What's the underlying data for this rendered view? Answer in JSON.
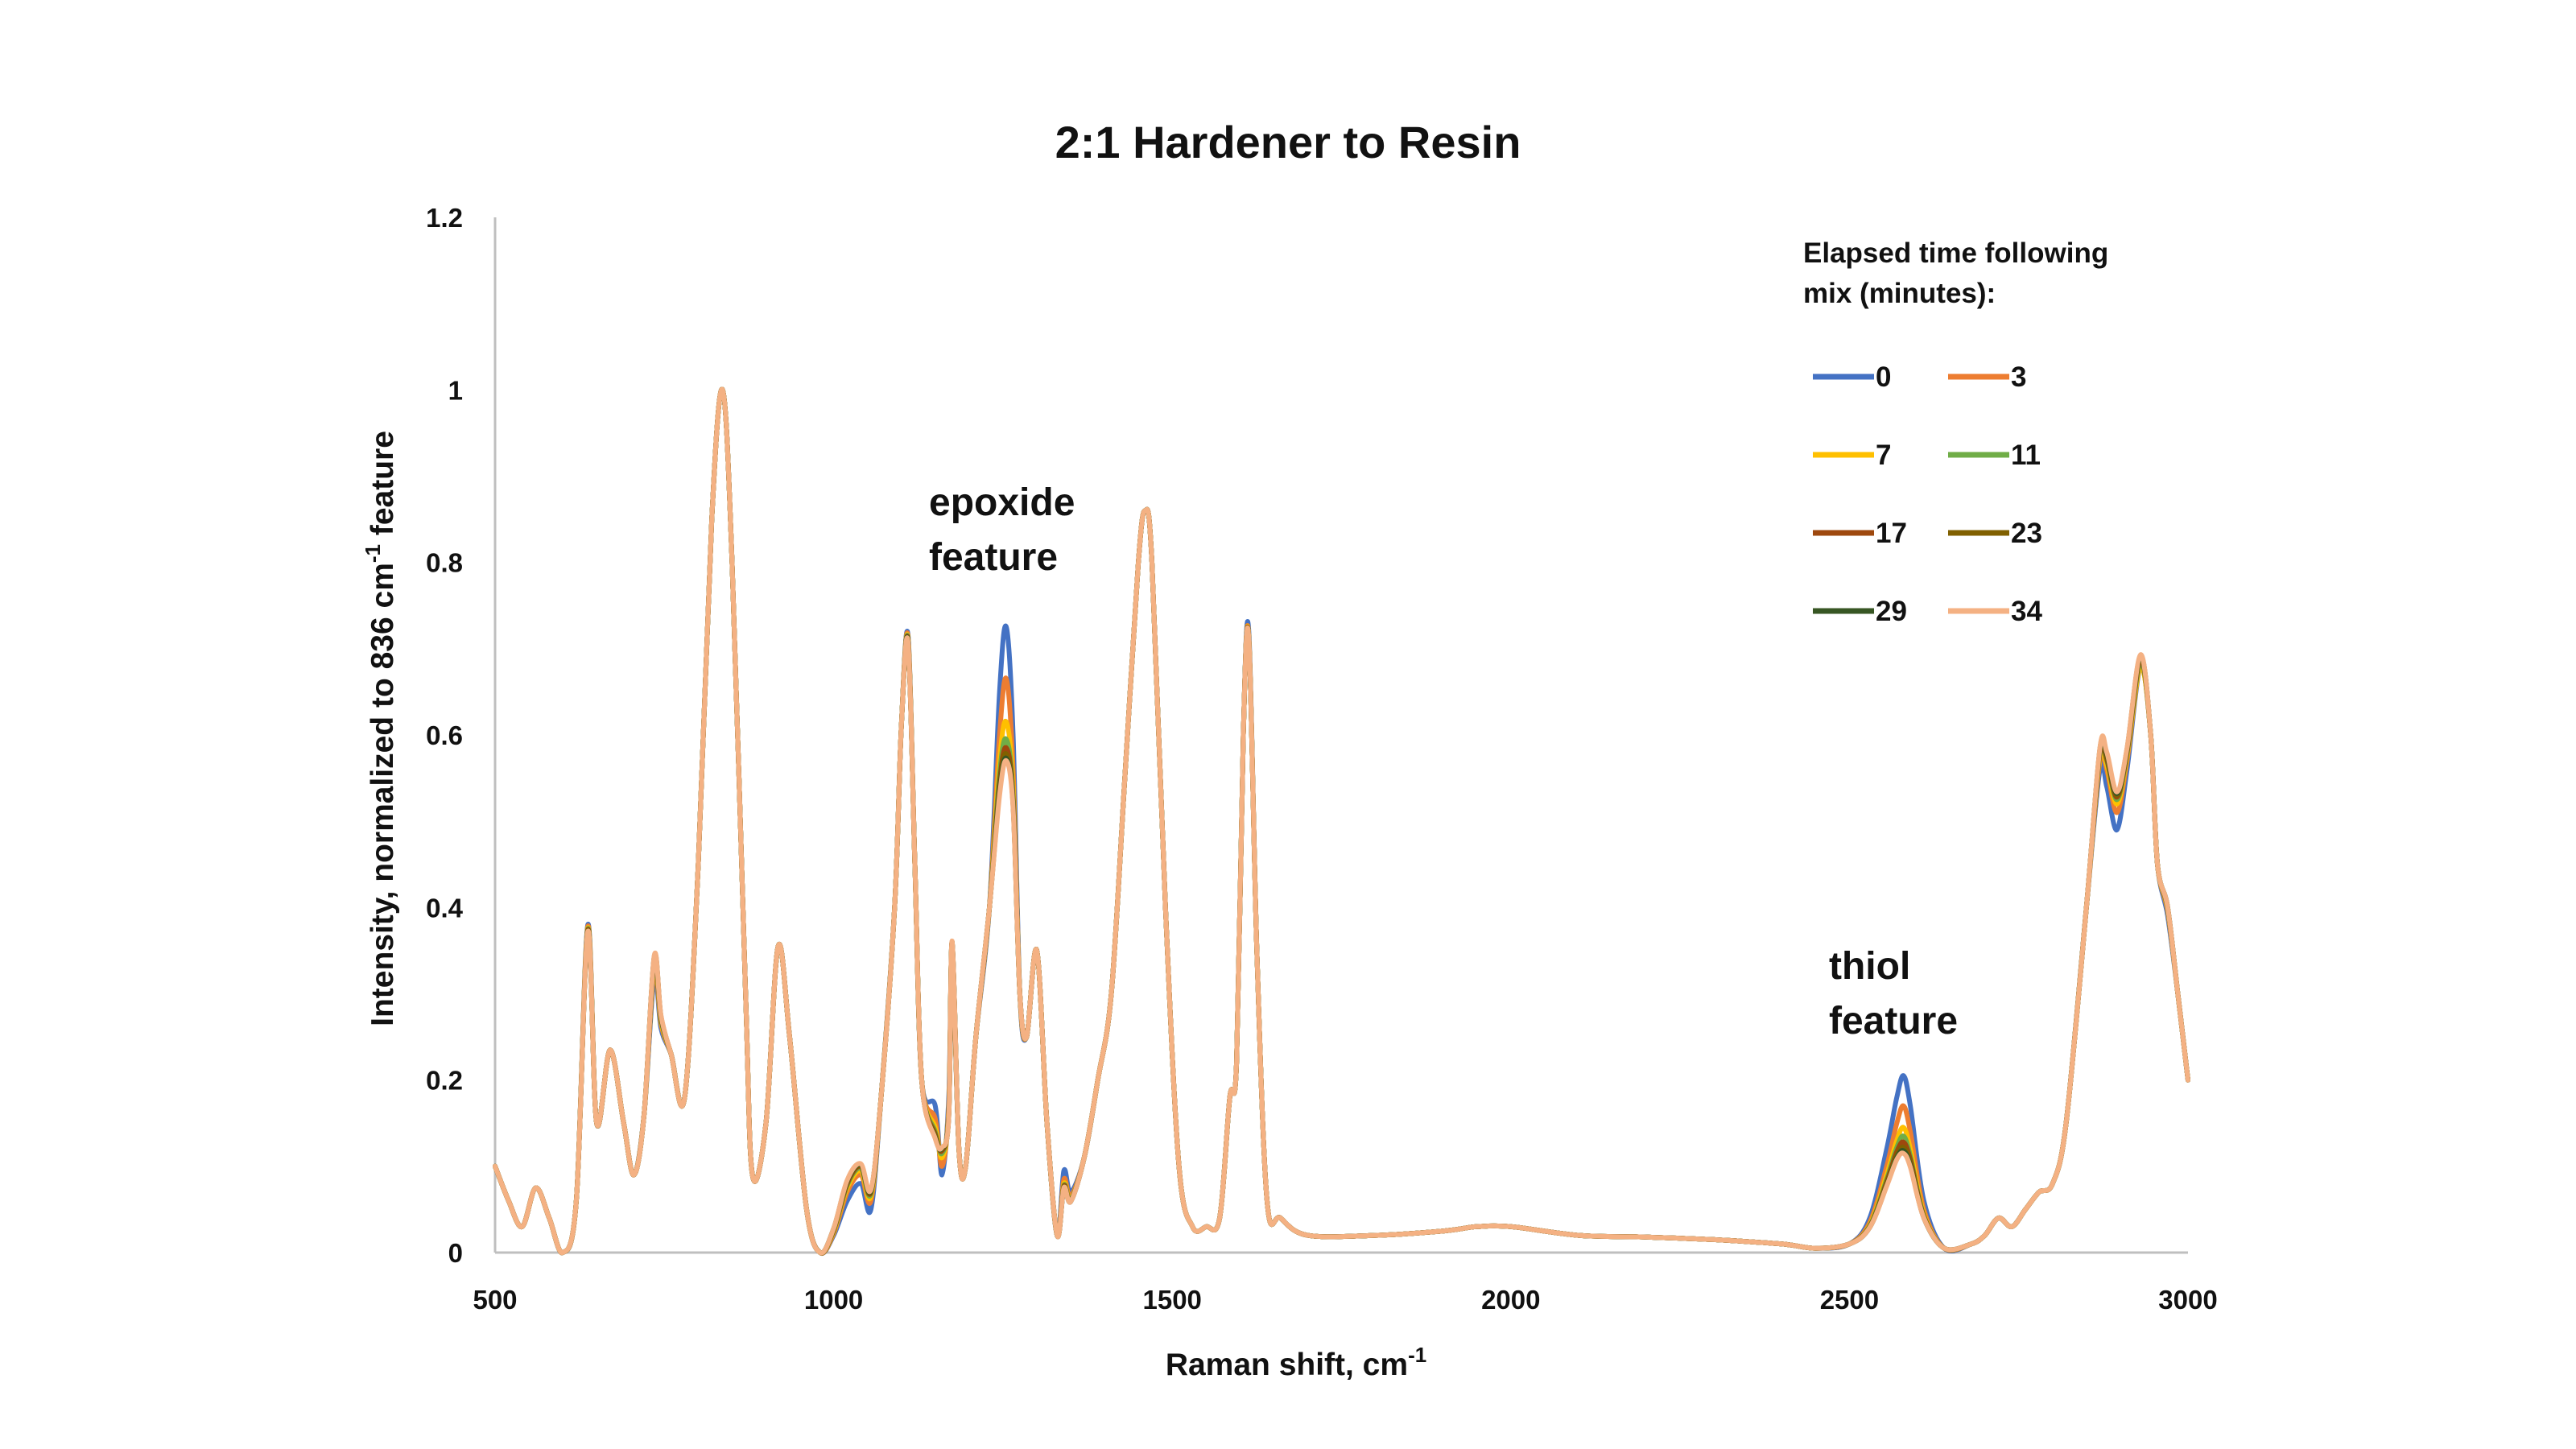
{
  "chart_data": {
    "type": "line",
    "title": "2:1 Hardener to Resin",
    "xlabel_main": "Raman shift, cm",
    "xlabel_sup": "-1",
    "ylabel_main": "Intensity, normalized to 836 cm",
    "ylabel_sup": "-1",
    "ylabel_tail": " feature",
    "xlim": [
      500,
      3000
    ],
    "ylim": [
      0,
      1.2
    ],
    "x_ticks": [
      500,
      1000,
      1500,
      2000,
      2500,
      3000
    ],
    "y_ticks": [
      "0",
      "0.2",
      "0.4",
      "0.6",
      "0.8",
      "1",
      "1.2"
    ],
    "y_tick_values": [
      0,
      0.2,
      0.4,
      0.6,
      0.8,
      1.0,
      1.2
    ],
    "grid": false,
    "legend_title_line1": "Elapsed time following",
    "legend_title_line2": "mix (minutes):",
    "legend_position": "top-right",
    "annotations": [
      {
        "line1": "epoxide",
        "line2": "feature"
      },
      {
        "line1": "thiol",
        "line2": "feature"
      }
    ],
    "x": [
      500,
      520,
      540,
      560,
      580,
      600,
      620,
      637,
      650,
      670,
      690,
      705,
      720,
      735,
      745,
      760,
      780,
      800,
      820,
      836,
      850,
      870,
      880,
      900,
      918,
      935,
      960,
      980,
      1000,
      1020,
      1040,
      1055,
      1070,
      1090,
      1100,
      1110,
      1120,
      1130,
      1150,
      1160,
      1170,
      1175,
      1185,
      1195,
      1210,
      1230,
      1245,
      1255,
      1265,
      1275,
      1285,
      1300,
      1315,
      1330,
      1340,
      1350,
      1370,
      1390,
      1410,
      1430,
      1450,
      1460,
      1470,
      1490,
      1510,
      1530,
      1550,
      1570,
      1585,
      1595,
      1605,
      1613,
      1625,
      1640,
      1660,
      1700,
      1800,
      1900,
      1950,
      2000,
      2100,
      2200,
      2300,
      2400,
      2450,
      2500,
      2530,
      2555,
      2570,
      2580,
      2590,
      2610,
      2640,
      2680,
      2700,
      2720,
      2740,
      2760,
      2780,
      2800,
      2820,
      2850,
      2870,
      2880,
      2895,
      2910,
      2930,
      2945,
      2955,
      2970,
      2985,
      3000
    ],
    "series": [
      {
        "name": "0",
        "color": "#4472C4",
        "values": [
          0.1,
          0.06,
          0.03,
          0.075,
          0.04,
          0.0,
          0.06,
          0.38,
          0.15,
          0.235,
          0.15,
          0.09,
          0.16,
          0.32,
          0.26,
          0.23,
          0.18,
          0.45,
          0.85,
          1.0,
          0.8,
          0.3,
          0.09,
          0.15,
          0.355,
          0.25,
          0.05,
          0.0,
          0.02,
          0.06,
          0.08,
          0.05,
          0.18,
          0.4,
          0.61,
          0.715,
          0.45,
          0.2,
          0.17,
          0.09,
          0.18,
          0.35,
          0.12,
          0.1,
          0.25,
          0.4,
          0.65,
          0.725,
          0.6,
          0.3,
          0.25,
          0.35,
          0.15,
          0.02,
          0.095,
          0.07,
          0.11,
          0.2,
          0.3,
          0.55,
          0.8,
          0.86,
          0.8,
          0.4,
          0.1,
          0.03,
          0.03,
          0.04,
          0.18,
          0.22,
          0.6,
          0.72,
          0.35,
          0.06,
          0.04,
          0.02,
          0.02,
          0.025,
          0.03,
          0.03,
          0.02,
          0.018,
          0.015,
          0.01,
          0.005,
          0.01,
          0.04,
          0.12,
          0.18,
          0.205,
          0.17,
          0.06,
          0.005,
          0.01,
          0.02,
          0.04,
          0.03,
          0.05,
          0.07,
          0.08,
          0.15,
          0.4,
          0.56,
          0.54,
          0.49,
          0.56,
          0.68,
          0.6,
          0.45,
          0.39,
          0.3,
          0.2
        ]
      },
      {
        "name": "3",
        "color": "#ED7D31",
        "values": [
          0.1,
          0.06,
          0.03,
          0.075,
          0.04,
          0.0,
          0.06,
          0.378,
          0.15,
          0.235,
          0.15,
          0.09,
          0.16,
          0.33,
          0.265,
          0.23,
          0.18,
          0.45,
          0.85,
          1.0,
          0.8,
          0.3,
          0.09,
          0.15,
          0.355,
          0.25,
          0.05,
          0.0,
          0.022,
          0.07,
          0.09,
          0.06,
          0.18,
          0.4,
          0.61,
          0.713,
          0.45,
          0.2,
          0.155,
          0.1,
          0.17,
          0.355,
          0.12,
          0.1,
          0.25,
          0.4,
          0.6,
          0.665,
          0.56,
          0.3,
          0.25,
          0.35,
          0.15,
          0.02,
          0.085,
          0.065,
          0.11,
          0.2,
          0.3,
          0.55,
          0.8,
          0.86,
          0.8,
          0.4,
          0.1,
          0.03,
          0.03,
          0.04,
          0.18,
          0.22,
          0.6,
          0.715,
          0.35,
          0.06,
          0.04,
          0.02,
          0.02,
          0.025,
          0.03,
          0.03,
          0.02,
          0.018,
          0.015,
          0.01,
          0.005,
          0.01,
          0.035,
          0.1,
          0.15,
          0.17,
          0.14,
          0.05,
          0.005,
          0.01,
          0.02,
          0.04,
          0.03,
          0.05,
          0.07,
          0.08,
          0.15,
          0.4,
          0.57,
          0.56,
          0.51,
          0.57,
          0.68,
          0.6,
          0.45,
          0.395,
          0.3,
          0.2
        ]
      },
      {
        "name": "7",
        "color": "#FFC000",
        "values": [
          0.1,
          0.06,
          0.03,
          0.075,
          0.04,
          0.0,
          0.06,
          0.376,
          0.15,
          0.235,
          0.15,
          0.09,
          0.16,
          0.335,
          0.268,
          0.23,
          0.18,
          0.45,
          0.85,
          1.0,
          0.8,
          0.3,
          0.09,
          0.15,
          0.355,
          0.25,
          0.05,
          0.0,
          0.024,
          0.075,
          0.095,
          0.065,
          0.18,
          0.4,
          0.61,
          0.711,
          0.45,
          0.2,
          0.145,
          0.11,
          0.165,
          0.357,
          0.12,
          0.1,
          0.25,
          0.4,
          0.57,
          0.615,
          0.54,
          0.3,
          0.25,
          0.35,
          0.15,
          0.02,
          0.08,
          0.062,
          0.11,
          0.2,
          0.3,
          0.55,
          0.8,
          0.86,
          0.8,
          0.4,
          0.1,
          0.03,
          0.03,
          0.04,
          0.18,
          0.22,
          0.6,
          0.714,
          0.35,
          0.06,
          0.04,
          0.02,
          0.02,
          0.025,
          0.03,
          0.03,
          0.02,
          0.018,
          0.015,
          0.01,
          0.005,
          0.01,
          0.032,
          0.09,
          0.13,
          0.145,
          0.12,
          0.045,
          0.005,
          0.01,
          0.02,
          0.04,
          0.03,
          0.05,
          0.07,
          0.08,
          0.15,
          0.4,
          0.575,
          0.565,
          0.52,
          0.575,
          0.68,
          0.6,
          0.45,
          0.397,
          0.3,
          0.2
        ]
      },
      {
        "name": "11",
        "color": "#70AD47",
        "values": [
          0.1,
          0.06,
          0.03,
          0.075,
          0.04,
          0.0,
          0.06,
          0.375,
          0.15,
          0.235,
          0.15,
          0.09,
          0.16,
          0.338,
          0.27,
          0.23,
          0.18,
          0.45,
          0.85,
          1.0,
          0.8,
          0.3,
          0.09,
          0.15,
          0.355,
          0.25,
          0.05,
          0.0,
          0.025,
          0.078,
          0.098,
          0.068,
          0.18,
          0.4,
          0.61,
          0.71,
          0.45,
          0.2,
          0.14,
          0.115,
          0.162,
          0.358,
          0.12,
          0.1,
          0.25,
          0.4,
          0.555,
          0.595,
          0.53,
          0.3,
          0.25,
          0.35,
          0.15,
          0.02,
          0.078,
          0.061,
          0.11,
          0.2,
          0.3,
          0.55,
          0.8,
          0.86,
          0.8,
          0.4,
          0.1,
          0.03,
          0.03,
          0.04,
          0.18,
          0.22,
          0.6,
          0.713,
          0.35,
          0.06,
          0.04,
          0.02,
          0.02,
          0.025,
          0.03,
          0.03,
          0.02,
          0.018,
          0.015,
          0.01,
          0.005,
          0.01,
          0.031,
          0.085,
          0.122,
          0.135,
          0.112,
          0.043,
          0.005,
          0.01,
          0.02,
          0.04,
          0.03,
          0.05,
          0.07,
          0.08,
          0.15,
          0.4,
          0.578,
          0.57,
          0.525,
          0.578,
          0.685,
          0.6,
          0.45,
          0.398,
          0.3,
          0.2
        ]
      },
      {
        "name": "17",
        "color": "#9E480E",
        "values": [
          0.1,
          0.06,
          0.03,
          0.075,
          0.04,
          0.0,
          0.06,
          0.374,
          0.15,
          0.235,
          0.15,
          0.09,
          0.16,
          0.34,
          0.272,
          0.23,
          0.18,
          0.45,
          0.85,
          1.0,
          0.8,
          0.3,
          0.09,
          0.15,
          0.355,
          0.25,
          0.05,
          0.0,
          0.026,
          0.08,
          0.1,
          0.07,
          0.18,
          0.4,
          0.61,
          0.709,
          0.45,
          0.2,
          0.137,
          0.118,
          0.16,
          0.359,
          0.12,
          0.1,
          0.25,
          0.4,
          0.545,
          0.585,
          0.525,
          0.3,
          0.25,
          0.35,
          0.15,
          0.02,
          0.077,
          0.06,
          0.11,
          0.2,
          0.3,
          0.55,
          0.8,
          0.86,
          0.8,
          0.4,
          0.1,
          0.03,
          0.03,
          0.04,
          0.18,
          0.22,
          0.6,
          0.713,
          0.35,
          0.06,
          0.04,
          0.02,
          0.02,
          0.025,
          0.03,
          0.03,
          0.02,
          0.018,
          0.015,
          0.01,
          0.005,
          0.01,
          0.03,
          0.082,
          0.117,
          0.128,
          0.108,
          0.042,
          0.005,
          0.01,
          0.02,
          0.04,
          0.03,
          0.05,
          0.07,
          0.08,
          0.15,
          0.4,
          0.58,
          0.572,
          0.528,
          0.58,
          0.688,
          0.6,
          0.45,
          0.399,
          0.3,
          0.2
        ]
      },
      {
        "name": "23",
        "color": "#806000",
        "values": [
          0.1,
          0.06,
          0.03,
          0.075,
          0.04,
          0.0,
          0.06,
          0.373,
          0.15,
          0.235,
          0.15,
          0.09,
          0.16,
          0.342,
          0.273,
          0.23,
          0.18,
          0.45,
          0.85,
          1.0,
          0.8,
          0.3,
          0.09,
          0.15,
          0.355,
          0.25,
          0.05,
          0.0,
          0.027,
          0.082,
          0.101,
          0.071,
          0.18,
          0.4,
          0.61,
          0.708,
          0.45,
          0.2,
          0.135,
          0.12,
          0.159,
          0.36,
          0.12,
          0.1,
          0.25,
          0.4,
          0.54,
          0.578,
          0.52,
          0.3,
          0.25,
          0.35,
          0.15,
          0.02,
          0.076,
          0.06,
          0.11,
          0.2,
          0.3,
          0.55,
          0.8,
          0.86,
          0.8,
          0.4,
          0.1,
          0.03,
          0.03,
          0.04,
          0.18,
          0.22,
          0.6,
          0.712,
          0.35,
          0.06,
          0.04,
          0.02,
          0.02,
          0.025,
          0.03,
          0.03,
          0.02,
          0.018,
          0.015,
          0.01,
          0.005,
          0.01,
          0.03,
          0.08,
          0.113,
          0.122,
          0.104,
          0.041,
          0.005,
          0.01,
          0.02,
          0.04,
          0.03,
          0.05,
          0.07,
          0.08,
          0.15,
          0.4,
          0.582,
          0.575,
          0.53,
          0.582,
          0.69,
          0.6,
          0.45,
          0.4,
          0.3,
          0.2
        ]
      },
      {
        "name": "29",
        "color": "#375623",
        "values": [
          0.1,
          0.06,
          0.03,
          0.075,
          0.04,
          0.0,
          0.06,
          0.372,
          0.15,
          0.235,
          0.15,
          0.09,
          0.16,
          0.343,
          0.274,
          0.23,
          0.18,
          0.45,
          0.85,
          1.0,
          0.8,
          0.3,
          0.09,
          0.15,
          0.355,
          0.25,
          0.05,
          0.0,
          0.028,
          0.083,
          0.102,
          0.072,
          0.18,
          0.4,
          0.61,
          0.708,
          0.45,
          0.2,
          0.133,
          0.121,
          0.158,
          0.36,
          0.12,
          0.1,
          0.25,
          0.4,
          0.535,
          0.573,
          0.518,
          0.3,
          0.25,
          0.35,
          0.15,
          0.02,
          0.075,
          0.059,
          0.11,
          0.2,
          0.3,
          0.55,
          0.8,
          0.86,
          0.8,
          0.4,
          0.1,
          0.03,
          0.03,
          0.04,
          0.18,
          0.22,
          0.6,
          0.712,
          0.35,
          0.06,
          0.04,
          0.02,
          0.02,
          0.025,
          0.03,
          0.03,
          0.02,
          0.018,
          0.015,
          0.01,
          0.005,
          0.01,
          0.029,
          0.078,
          0.11,
          0.118,
          0.101,
          0.04,
          0.005,
          0.01,
          0.02,
          0.04,
          0.03,
          0.05,
          0.07,
          0.08,
          0.15,
          0.4,
          0.584,
          0.578,
          0.532,
          0.584,
          0.692,
          0.6,
          0.45,
          0.4,
          0.3,
          0.2
        ]
      },
      {
        "name": "34",
        "color": "#F4B183",
        "values": [
          0.1,
          0.06,
          0.03,
          0.075,
          0.04,
          0.0,
          0.06,
          0.372,
          0.15,
          0.235,
          0.15,
          0.09,
          0.16,
          0.344,
          0.275,
          0.23,
          0.18,
          0.45,
          0.85,
          1.0,
          0.8,
          0.3,
          0.09,
          0.15,
          0.355,
          0.25,
          0.05,
          0.0,
          0.028,
          0.084,
          0.103,
          0.073,
          0.18,
          0.4,
          0.61,
          0.707,
          0.45,
          0.2,
          0.132,
          0.122,
          0.157,
          0.361,
          0.12,
          0.1,
          0.25,
          0.4,
          0.53,
          0.57,
          0.515,
          0.3,
          0.25,
          0.35,
          0.15,
          0.02,
          0.075,
          0.059,
          0.11,
          0.2,
          0.3,
          0.55,
          0.8,
          0.86,
          0.8,
          0.4,
          0.1,
          0.03,
          0.03,
          0.04,
          0.18,
          0.22,
          0.6,
          0.712,
          0.35,
          0.06,
          0.04,
          0.02,
          0.02,
          0.025,
          0.03,
          0.03,
          0.02,
          0.018,
          0.015,
          0.01,
          0.005,
          0.01,
          0.029,
          0.077,
          0.108,
          0.115,
          0.099,
          0.04,
          0.005,
          0.01,
          0.02,
          0.04,
          0.03,
          0.05,
          0.07,
          0.08,
          0.15,
          0.4,
          0.585,
          0.58,
          0.534,
          0.585,
          0.693,
          0.6,
          0.45,
          0.4,
          0.3,
          0.2
        ]
      }
    ]
  }
}
